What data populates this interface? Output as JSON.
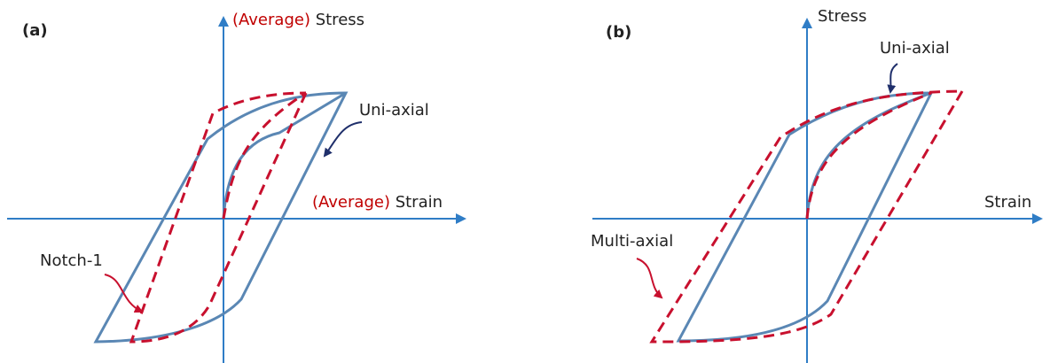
{
  "panels": [
    {
      "label": "(a)",
      "y_axis": {
        "prefix": "(Average)",
        "text": "Stress"
      },
      "x_axis": {
        "prefix": "(Average)",
        "text": "Strain"
      },
      "annotations": [
        "Uni-axial",
        "Notch-1"
      ]
    },
    {
      "label": "(b)",
      "y_axis": {
        "text": "Stress"
      },
      "x_axis": {
        "text": "Strain"
      },
      "annotations": [
        "Uni-axial",
        "Multi-axial"
      ]
    }
  ]
}
